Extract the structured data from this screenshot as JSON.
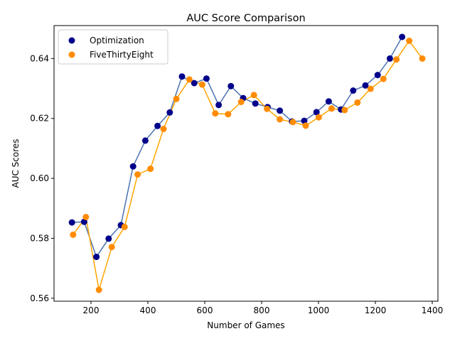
{
  "chart_data": {
    "type": "scatter",
    "title": "AUC Score Comparison",
    "xlabel": "Number of Games",
    "ylabel": "AUC Scores",
    "xlim": [
      70,
      1420
    ],
    "ylim": [
      0.559,
      0.651
    ],
    "xticks": [
      200,
      400,
      600,
      800,
      1000,
      1200,
      1400
    ],
    "yticks": [
      0.56,
      0.58,
      0.6,
      0.62,
      0.64
    ],
    "ytick_labels": [
      "0.56",
      "0.58",
      "0.60",
      "0.62",
      "0.64"
    ],
    "grid": false,
    "legend_position": "top-left",
    "series": [
      {
        "name": "Optimization",
        "marker_color": "#00008b",
        "line_color": "#4c72b0",
        "x": [
          133,
          176,
          219,
          262,
          305,
          348,
          391,
          434,
          477,
          520,
          563,
          606,
          649,
          692,
          735,
          778,
          821,
          864,
          907,
          950,
          993,
          1036,
          1079,
          1122,
          1165,
          1208,
          1251,
          1294
        ],
        "y": [
          0.5853,
          0.5855,
          0.5738,
          0.5799,
          0.5844,
          0.604,
          0.6126,
          0.6175,
          0.622,
          0.634,
          0.6318,
          0.6333,
          0.6245,
          0.6308,
          0.6268,
          0.625,
          0.6238,
          0.6226,
          0.619,
          0.6192,
          0.6221,
          0.6257,
          0.623,
          0.6293,
          0.631,
          0.6345,
          0.64,
          0.6472
        ]
      },
      {
        "name": "FiveThirtyEight",
        "marker_color": "#ff8c00",
        "line_color": "#ffa500",
        "x": [
          137,
          182,
          228,
          273,
          318,
          364,
          409,
          455,
          500,
          546,
          591,
          637,
          682,
          728,
          773,
          819,
          864,
          910,
          955,
          1001,
          1046,
          1092,
          1137,
          1183,
          1228,
          1274,
          1319,
          1365
        ],
        "y": [
          0.5812,
          0.5871,
          0.5628,
          0.5771,
          0.5838,
          0.6013,
          0.6032,
          0.6165,
          0.6265,
          0.633,
          0.6313,
          0.6217,
          0.6214,
          0.6255,
          0.6278,
          0.6232,
          0.6197,
          0.6188,
          0.6176,
          0.6204,
          0.6233,
          0.6228,
          0.6253,
          0.6299,
          0.6332,
          0.6397,
          0.6459,
          0.64
        ]
      }
    ]
  }
}
